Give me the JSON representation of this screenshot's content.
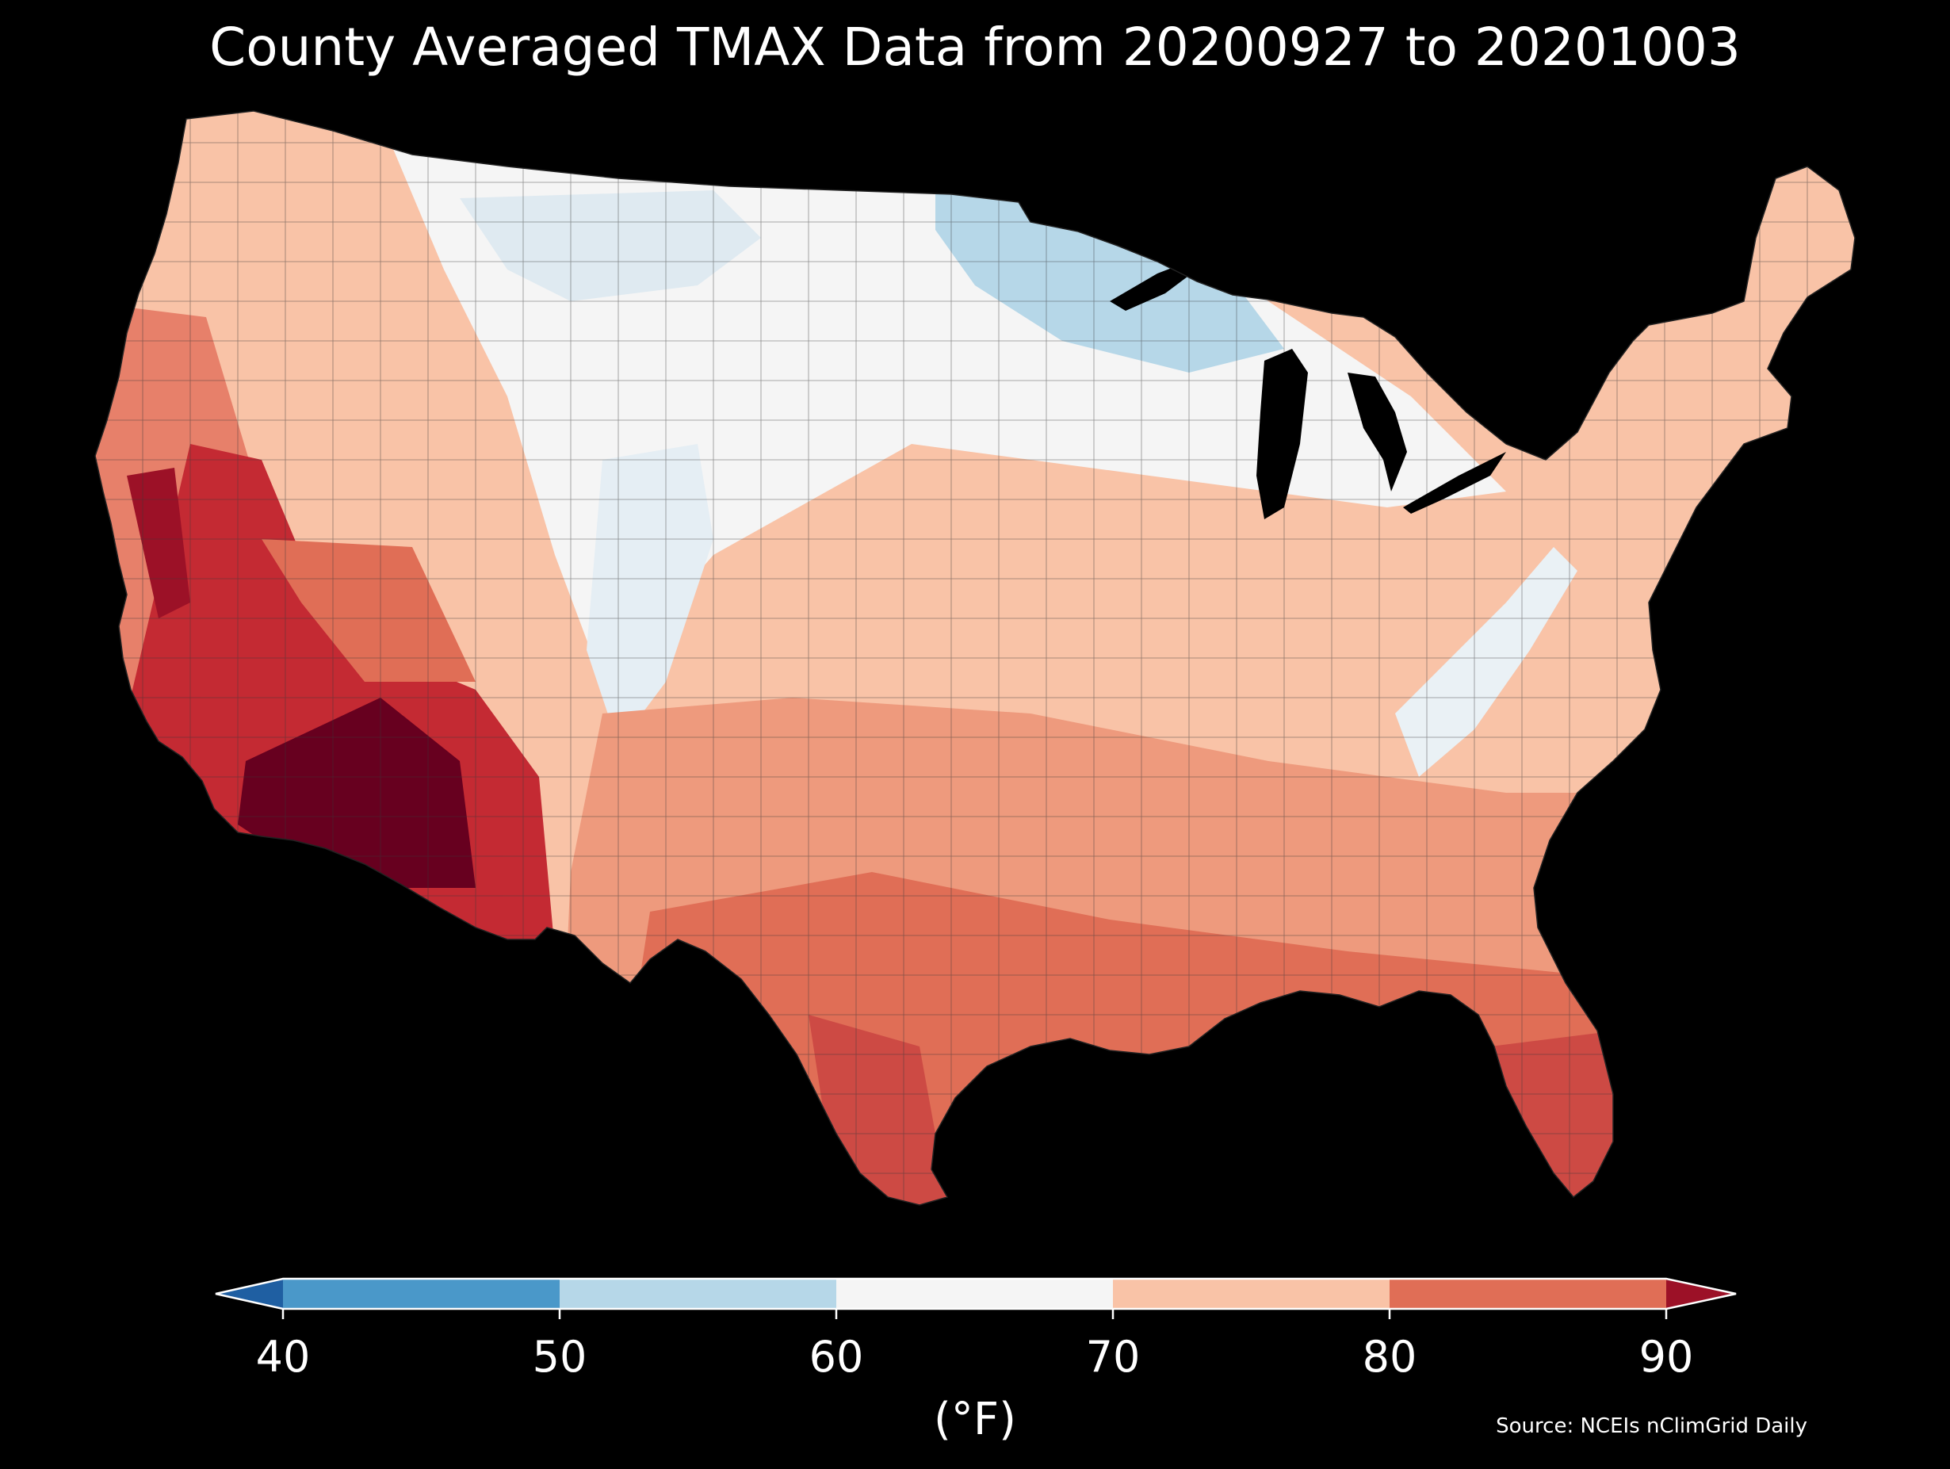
{
  "title": "County Averaged TMAX Data from 20200927 to 20201003",
  "source": "Source: NCEIs nClimGrid Daily",
  "colorbar": {
    "unit": "(°F)",
    "ticks": [
      "40",
      "50",
      "60",
      "70",
      "80",
      "90"
    ],
    "bins": [
      {
        "from": 40,
        "to": 50,
        "color": "#4a98c9"
      },
      {
        "from": 50,
        "to": 60,
        "color": "#b6d7e8"
      },
      {
        "from": 60,
        "to": 70,
        "color": "#f5f5f5"
      },
      {
        "from": 70,
        "to": 80,
        "color": "#f9c3a7"
      },
      {
        "from": 80,
        "to": 90,
        "color": "#e06e56"
      }
    ],
    "under_color": "#1f5fa2",
    "over_color": "#9c1127",
    "outline_color": "#ffffff"
  },
  "map": {
    "region": "contiguous United States",
    "background": "#000000",
    "water_color": "#000000",
    "county_line_color": "#333333",
    "palette": {
      "cool": "#b6d7e8",
      "neutral": "#f5f5f5",
      "warm": "#f9c3a7",
      "hot": "#e06e56",
      "very_hot": "#b2182b",
      "extreme": "#67001f"
    }
  }
}
